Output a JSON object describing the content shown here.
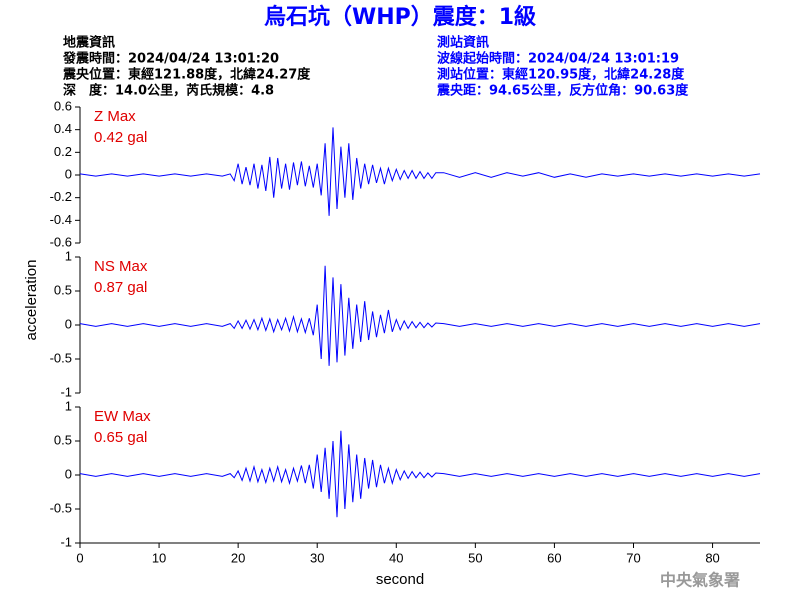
{
  "header": {
    "title": "烏石坑（WHP）震度：1級",
    "event_info": [
      "地震資訊",
      "發震時間：2024/04/24 13:01:20",
      "震央位置：東經121.88度，北緯24.27度",
      "深　度：14.0公里，芮氏規模：4.8"
    ],
    "station_info": [
      "測站資訊",
      "波線起始時間：2024/04/24 13:01:19",
      "測站位置：東經120.95度，北緯24.28度",
      "震央距：94.65公里，反方位角：90.63度"
    ],
    "y_label": "acceleration",
    "x_label": "second",
    "watermark": "中央氣象署"
  },
  "chart_data": [
    {
      "type": "line",
      "annotation": [
        "Z Max",
        "0.42 gal"
      ],
      "color": "#0000ff",
      "xlim": [
        0,
        86
      ],
      "ylim": [
        -0.6,
        0.6
      ],
      "yticks": [
        -0.6,
        -0.4,
        -0.2,
        0,
        0.2,
        0.4,
        0.6
      ],
      "x": [
        0,
        2,
        4,
        6,
        8,
        10,
        12,
        14,
        16,
        18,
        19,
        19.5,
        20,
        20.5,
        21,
        21.5,
        22,
        22.5,
        23,
        23.5,
        24,
        24.5,
        25,
        25.5,
        26,
        26.5,
        27,
        27.5,
        28,
        28.5,
        29,
        29.5,
        30,
        30.5,
        31,
        31.5,
        32,
        32.5,
        33,
        33.5,
        34,
        34.5,
        35,
        35.5,
        36,
        36.5,
        37,
        37.5,
        38,
        38.5,
        39,
        39.5,
        40,
        40.5,
        41,
        41.5,
        42,
        42.5,
        43,
        43.5,
        44,
        44.5,
        45,
        46,
        48,
        50,
        52,
        54,
        56,
        58,
        60,
        62,
        64,
        66,
        68,
        70,
        72,
        74,
        76,
        78,
        80,
        82,
        84,
        86
      ],
      "values": [
        0.01,
        -0.01,
        0.01,
        -0.01,
        0.01,
        -0.01,
        0.01,
        -0.01,
        0.01,
        -0.01,
        0.01,
        -0.05,
        0.1,
        -0.08,
        0.07,
        -0.09,
        0.1,
        -0.12,
        0.09,
        -0.14,
        0.16,
        -0.2,
        0.15,
        -0.12,
        0.1,
        -0.13,
        0.11,
        -0.09,
        0.12,
        -0.1,
        0.08,
        -0.11,
        0.1,
        -0.18,
        0.28,
        -0.36,
        0.42,
        -0.3,
        0.25,
        -0.2,
        0.28,
        -0.22,
        0.15,
        -0.12,
        0.1,
        -0.08,
        0.09,
        -0.07,
        0.06,
        -0.08,
        0.06,
        -0.05,
        0.05,
        -0.04,
        0.04,
        -0.03,
        0.04,
        -0.03,
        0.03,
        -0.03,
        0.02,
        -0.03,
        0.02,
        0.02,
        -0.02,
        0.02,
        -0.02,
        0.02,
        -0.01,
        0.02,
        -0.02,
        0.01,
        -0.02,
        0.01,
        -0.01,
        0.01,
        -0.01,
        0.01,
        -0.01,
        0.01,
        -0.01,
        0.01,
        -0.01,
        0.01
      ]
    },
    {
      "type": "line",
      "annotation": [
        "NS Max",
        "0.87 gal"
      ],
      "color": "#0000ff",
      "xlim": [
        0,
        86
      ],
      "ylim": [
        -1,
        1
      ],
      "yticks": [
        -1,
        -0.5,
        0,
        0.5,
        1
      ],
      "x": [
        0,
        2,
        4,
        6,
        8,
        10,
        12,
        14,
        16,
        18,
        19,
        19.5,
        20,
        20.5,
        21,
        21.5,
        22,
        22.5,
        23,
        23.5,
        24,
        24.5,
        25,
        25.5,
        26,
        26.5,
        27,
        27.5,
        28,
        28.5,
        29,
        29.5,
        30,
        30.5,
        31,
        31.5,
        32,
        32.5,
        33,
        33.5,
        34,
        34.5,
        35,
        35.5,
        36,
        36.5,
        37,
        37.5,
        38,
        38.5,
        39,
        39.5,
        40,
        40.5,
        41,
        41.5,
        42,
        42.5,
        43,
        43.5,
        44,
        44.5,
        45,
        46,
        48,
        50,
        52,
        54,
        56,
        58,
        60,
        62,
        64,
        66,
        68,
        70,
        72,
        74,
        76,
        78,
        80,
        82,
        84,
        86
      ],
      "values": [
        0.02,
        -0.02,
        0.02,
        -0.02,
        0.02,
        -0.02,
        0.02,
        -0.02,
        0.02,
        -0.02,
        0.02,
        -0.05,
        0.06,
        -0.05,
        0.07,
        -0.06,
        0.08,
        -0.07,
        0.1,
        -0.08,
        0.09,
        -0.1,
        0.08,
        -0.07,
        0.1,
        -0.09,
        0.12,
        -0.1,
        0.09,
        -0.11,
        0.1,
        -0.15,
        0.3,
        -0.5,
        0.87,
        -0.6,
        0.7,
        -0.55,
        0.6,
        -0.45,
        0.4,
        -0.35,
        0.3,
        -0.25,
        0.35,
        -0.22,
        0.2,
        -0.18,
        0.15,
        -0.12,
        0.22,
        -0.1,
        0.08,
        -0.07,
        0.06,
        -0.05,
        0.05,
        -0.04,
        0.04,
        -0.04,
        0.03,
        -0.03,
        0.03,
        0.02,
        -0.02,
        0.02,
        -0.02,
        0.02,
        -0.02,
        0.02,
        -0.02,
        0.02,
        -0.02,
        0.02,
        -0.02,
        0.02,
        -0.02,
        0.02,
        -0.02,
        0.02,
        -0.02,
        0.02,
        -0.02,
        0.02
      ]
    },
    {
      "type": "line",
      "annotation": [
        "EW Max",
        "0.65 gal"
      ],
      "color": "#0000ff",
      "xlim": [
        0,
        86
      ],
      "ylim": [
        -1,
        1
      ],
      "yticks": [
        -1,
        -0.5,
        0,
        0.5,
        1
      ],
      "xticks": [
        0,
        10,
        20,
        30,
        40,
        50,
        60,
        70,
        80
      ],
      "x": [
        0,
        2,
        4,
        6,
        8,
        10,
        12,
        14,
        16,
        18,
        19,
        19.5,
        20,
        20.5,
        21,
        21.5,
        22,
        22.5,
        23,
        23.5,
        24,
        24.5,
        25,
        25.5,
        26,
        26.5,
        27,
        27.5,
        28,
        28.5,
        29,
        29.5,
        30,
        30.5,
        31,
        31.5,
        32,
        32.5,
        33,
        33.5,
        34,
        34.5,
        35,
        35.5,
        36,
        36.5,
        37,
        37.5,
        38,
        38.5,
        39,
        39.5,
        40,
        40.5,
        41,
        41.5,
        42,
        42.5,
        43,
        43.5,
        44,
        44.5,
        45,
        46,
        48,
        50,
        52,
        54,
        56,
        58,
        60,
        62,
        64,
        66,
        68,
        70,
        72,
        74,
        76,
        78,
        80,
        82,
        84,
        86
      ],
      "values": [
        0.02,
        -0.02,
        0.02,
        -0.02,
        0.02,
        -0.02,
        0.02,
        -0.02,
        0.02,
        -0.02,
        0.02,
        -0.04,
        0.06,
        -0.08,
        0.1,
        -0.09,
        0.12,
        -0.1,
        0.08,
        -0.11,
        0.1,
        -0.09,
        0.12,
        -0.1,
        0.08,
        -0.12,
        0.1,
        -0.09,
        0.14,
        -0.12,
        0.15,
        -0.2,
        0.3,
        -0.25,
        0.4,
        -0.35,
        0.5,
        -0.62,
        0.65,
        -0.5,
        0.45,
        -0.4,
        0.3,
        -0.35,
        0.25,
        -0.2,
        0.22,
        -0.18,
        0.15,
        -0.12,
        0.1,
        -0.12,
        0.08,
        -0.07,
        0.06,
        -0.05,
        0.05,
        -0.04,
        0.04,
        -0.04,
        0.03,
        -0.03,
        0.03,
        0.02,
        -0.02,
        0.02,
        -0.02,
        0.02,
        -0.02,
        0.02,
        -0.02,
        0.02,
        -0.02,
        0.02,
        -0.02,
        0.02,
        -0.02,
        0.02,
        -0.02,
        0.02,
        -0.02,
        0.02,
        -0.02,
        0.02
      ]
    }
  ]
}
